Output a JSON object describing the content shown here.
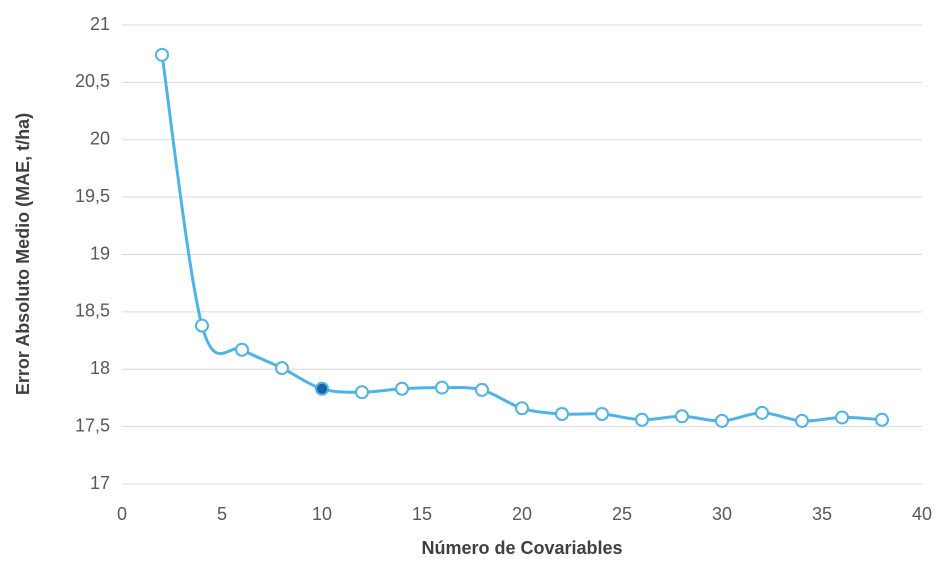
{
  "chart_data": {
    "type": "line",
    "x_label": "Número de Covariables",
    "y_label": "Error Absoluto Medio (MAE, t/ha)",
    "x": [
      2,
      4,
      6,
      8,
      10,
      12,
      14,
      16,
      18,
      20,
      22,
      24,
      26,
      28,
      30,
      32,
      34,
      36,
      38
    ],
    "values": [
      20.74,
      18.38,
      18.17,
      18.01,
      17.83,
      17.8,
      17.83,
      17.84,
      17.82,
      17.66,
      17.61,
      17.61,
      17.56,
      17.59,
      17.55,
      17.62,
      17.55,
      17.58,
      17.56
    ],
    "color": "#4fb3e3",
    "marker_fill": "#ffffff",
    "highlight_index": 4,
    "highlight_fill": "#1f5fa8",
    "xlim": [
      0,
      40
    ],
    "xticks": [
      0,
      5,
      10,
      15,
      20,
      25,
      30,
      35,
      40
    ],
    "ylim": [
      17,
      21
    ],
    "yticks": [
      17,
      {
        "value": 17.5,
        "label": "17,5"
      },
      18,
      {
        "value": 18.5,
        "label": "18,5"
      },
      19,
      {
        "value": 19.5,
        "label": "19,5"
      },
      20,
      {
        "value": 20.5,
        "label": "20,5"
      },
      21
    ],
    "grid": true
  }
}
